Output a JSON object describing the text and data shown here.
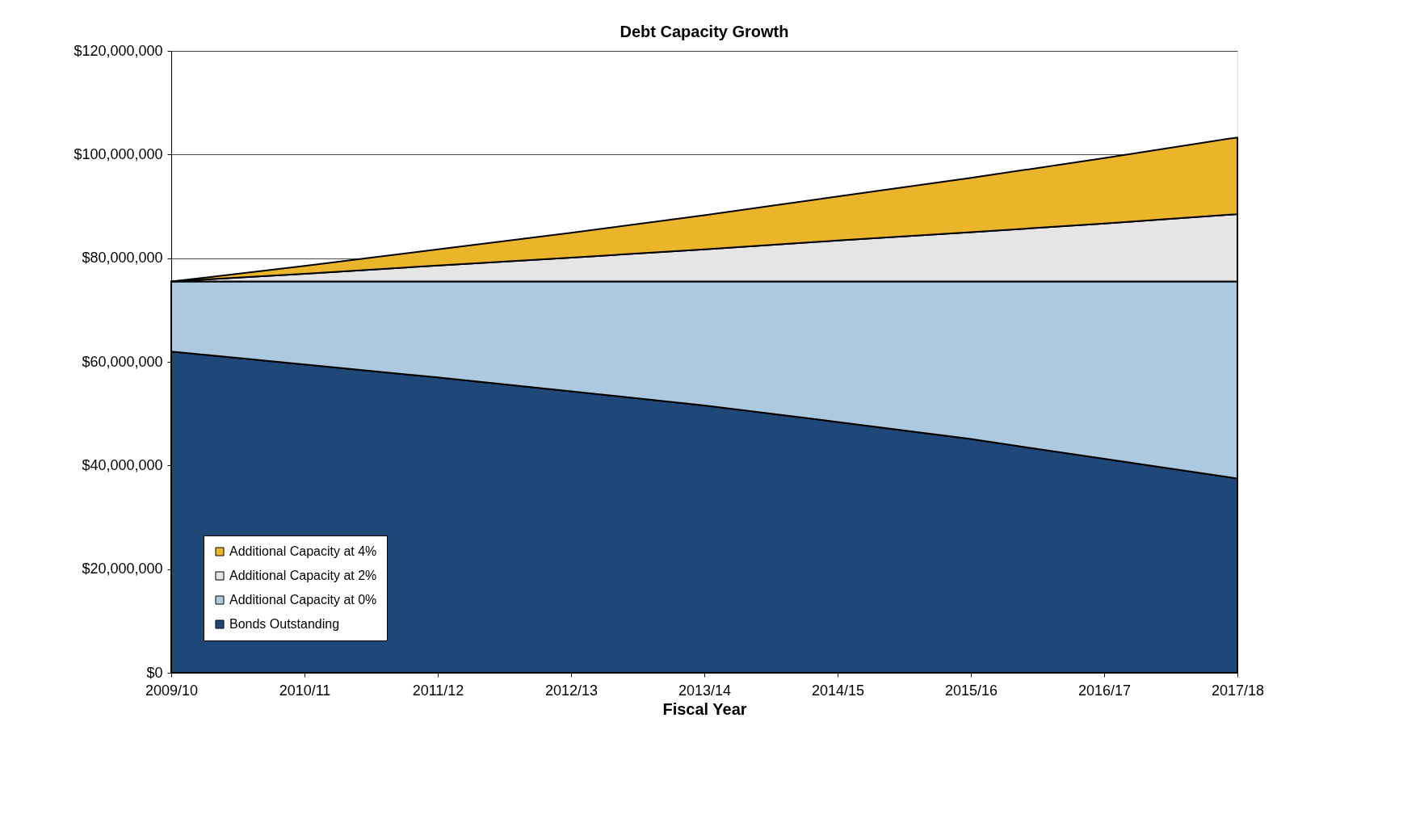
{
  "chart_data": {
    "type": "area",
    "title": "Debt Capacity Growth",
    "xlabel": "Fiscal Year",
    "stacked": true,
    "categories": [
      "2009/10",
      "2010/11",
      "2011/12",
      "2012/13",
      "2013/14",
      "2014/15",
      "2015/16",
      "2016/17",
      "2017/18"
    ],
    "series": [
      {
        "name": "Bonds Outstanding",
        "color": "#1f4778",
        "values": [
          62000000,
          59500000,
          57000000,
          54300000,
          51600000,
          48400000,
          45100000,
          41300000,
          37500000
        ]
      },
      {
        "name": "Additional Capacity at 0%",
        "color": "#adc9df",
        "values": [
          13500000,
          16000000,
          18500000,
          21200000,
          23900000,
          27100000,
          30400000,
          34200000,
          38000000
        ]
      },
      {
        "name": "Additional Capacity at 2%",
        "color": "#e4e5e4",
        "values": [
          0,
          1500000,
          3100000,
          4600000,
          6200000,
          7900000,
          9500000,
          11200000,
          13000000
        ]
      },
      {
        "name": "Additional Capacity at 4%",
        "color": "#ebb52b",
        "values": [
          0,
          1500000,
          3100000,
          4800000,
          6600000,
          8500000,
          10500000,
          12600000,
          14800000
        ]
      }
    ],
    "ylim": [
      0,
      120000000
    ],
    "yticks": [
      {
        "value": 0,
        "label": "$0"
      },
      {
        "value": 20000000,
        "label": "$20,000,000"
      },
      {
        "value": 40000000,
        "label": "$40,000,000"
      },
      {
        "value": 60000000,
        "label": "$60,000,000"
      },
      {
        "value": 80000000,
        "label": "$80,000,000"
      },
      {
        "value": 100000000,
        "label": "$100,000,000"
      },
      {
        "value": 120000000,
        "label": "$120,000,000"
      }
    ],
    "grid": "y",
    "legend": "bottom left"
  }
}
